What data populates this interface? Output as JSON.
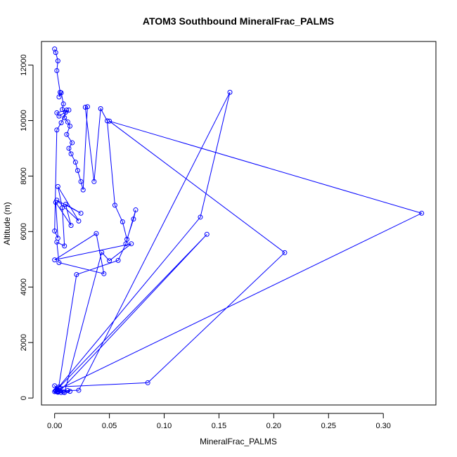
{
  "chart_data": {
    "type": "line",
    "title": "ATOM3 Southbound MineralFrac_PALMS",
    "xlabel": "MineralFrac_PALMS",
    "ylabel": "Altitude (m)",
    "xlim": [
      -0.012,
      0.348
    ],
    "ylim": [
      -250,
      12850
    ],
    "xticks": [
      0.0,
      0.05,
      0.1,
      0.15,
      0.2,
      0.25,
      0.3
    ],
    "xtick_labels": [
      "0.00",
      "0.05",
      "0.10",
      "0.15",
      "0.20",
      "0.25",
      "0.30"
    ],
    "yticks": [
      0,
      2000,
      4000,
      6000,
      8000,
      10000,
      12000
    ],
    "ytick_labels": [
      "0",
      "2000",
      "4000",
      "6000",
      "8000",
      "10000",
      "12000"
    ],
    "grid": false,
    "legend": "none",
    "marker": "open-circle",
    "line_color": "#0000ff",
    "series": [
      {
        "x": [
          0.0,
          0.001,
          0.003,
          0.002,
          0.005,
          0.004,
          0.006,
          0.008,
          0.007,
          0.01,
          0.009,
          0.012,
          0.014,
          0.011,
          0.016,
          0.013,
          0.015,
          0.019,
          0.021,
          0.024,
          0.026,
          0.03,
          0.028,
          0.036,
          0.042,
          0.048,
          0.055,
          0.062,
          0.066,
          0.072,
          0.074,
          0.065,
          0.058,
          0.02,
          0.003,
          0.002,
          0.001,
          0.004,
          0.085,
          0.21,
          0.05,
          0.335,
          0.003,
          0.001,
          0.008,
          0.012,
          0.014,
          0.006,
          0.003,
          0.0,
          0.001,
          0.022,
          0.16,
          0.133,
          0.001,
          0.002,
          0.005,
          0.139,
          0.002,
          0.004,
          0.0,
          0.003,
          0.009,
          0.043,
          0.05,
          0.07,
          0.0,
          0.038,
          0.045,
          0.004,
          0.002,
          0.009,
          0.007,
          0.003,
          0.022,
          0.002,
          0.024,
          0.01,
          0.015,
          0.001,
          0.003,
          0.0,
          0.002,
          0.006,
          0.011,
          0.002,
          0.004,
          0.013
        ],
        "y": [
          12580,
          12450,
          12150,
          11800,
          11020,
          10850,
          11000,
          10600,
          10400,
          10300,
          10100,
          9950,
          9800,
          9500,
          9200,
          9000,
          8800,
          8500,
          8200,
          7800,
          7500,
          10500,
          10480,
          7800,
          10430,
          9990,
          6950,
          6350,
          5720,
          6450,
          6780,
          5560,
          4960,
          4450,
          220,
          230,
          250,
          400,
          550,
          5240,
          9980,
          6660,
          300,
          260,
          220,
          270,
          240,
          200,
          210,
          230,
          260,
          280,
          11020,
          6520,
          270,
          230,
          260,
          5900,
          300,
          350,
          440,
          240,
          200,
          5250,
          4950,
          5560,
          4980,
          5930,
          4480,
          4880,
          5620,
          5480,
          6860,
          7620,
          6380,
          7130,
          6660,
          6980,
          6220,
          7050,
          5760,
          6020,
          9660,
          9920,
          10380,
          10280,
          10160,
          10380
        ]
      }
    ]
  }
}
